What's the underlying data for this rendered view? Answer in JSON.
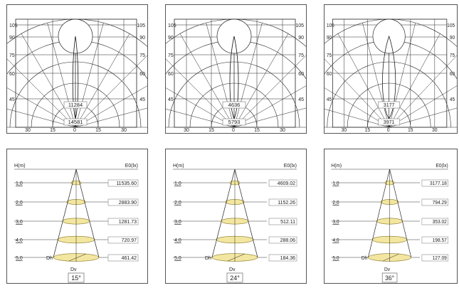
{
  "polar_diagrams": [
    {
      "angle_labels_left": [
        "105",
        "90",
        "75",
        "60",
        "45"
      ],
      "angle_labels_right": [
        "105",
        "90",
        "75",
        "60",
        "45"
      ],
      "bottom_labels": [
        "30",
        "15",
        "0",
        "15",
        "30"
      ],
      "intensity_inner": "11284",
      "intensity_outer": "14581"
    },
    {
      "angle_labels_left": [
        "105",
        "90",
        "75",
        "60",
        "45"
      ],
      "angle_labels_right": [
        "105",
        "90",
        "75",
        "60",
        "45"
      ],
      "bottom_labels": [
        "30",
        "15",
        "0",
        "15",
        "30"
      ],
      "intensity_inner": "4636",
      "intensity_outer": "5793"
    },
    {
      "angle_labels_left": [
        "105",
        "90",
        "75",
        "60",
        "45"
      ],
      "angle_labels_right": [
        "105",
        "90",
        "75",
        "60",
        "45"
      ],
      "bottom_labels": [
        "30",
        "15",
        "0",
        "15",
        "30"
      ],
      "intensity_inner": "3177",
      "intensity_outer": "3971"
    }
  ],
  "cone_diagrams": [
    {
      "h_label": "H(m)",
      "e_label": "E0(lx)",
      "heights": [
        "1,0",
        "2,0",
        "3,0",
        "4,0",
        "5,0"
      ],
      "illuminance": [
        "11535.60",
        "2883.90",
        "1281.73",
        "720.97",
        "461.42"
      ],
      "dh_label": "Dh",
      "dv_label": "Dv",
      "beam_angle": "15°"
    },
    {
      "h_label": "H(m)",
      "e_label": "E0(lx)",
      "heights": [
        "1,0",
        "2,0",
        "3,0",
        "4,0",
        "5,0"
      ],
      "illuminance": [
        "4609.02",
        "1152.26",
        "512.11",
        "288.06",
        "184.36"
      ],
      "dh_label": "Dh",
      "dv_label": "Dv",
      "beam_angle": "24°"
    },
    {
      "h_label": "H(m)",
      "e_label": "E0(lx)",
      "heights": [
        "1,0",
        "2,0",
        "3,0",
        "4,0",
        "5,0"
      ],
      "illuminance": [
        "3177.18",
        "794.29",
        "353.02",
        "198.57",
        "127.09"
      ],
      "dh_label": "Dh",
      "dv_label": "Dv",
      "beam_angle": "36°"
    }
  ],
  "colors": {
    "ellipse_fill": "#f3e6a0",
    "ellipse_stroke": "#8a7a2a",
    "line": "#222222"
  }
}
